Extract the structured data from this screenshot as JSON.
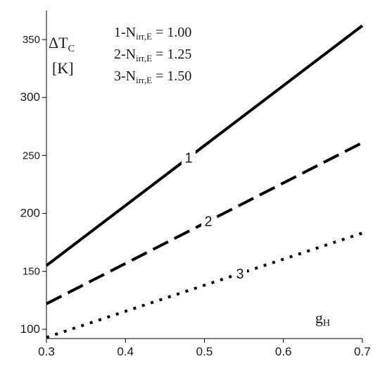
{
  "chart_data": {
    "type": "line",
    "xlabel": {
      "main": "g",
      "sub": "H"
    },
    "ylabel": {
      "line1_main": "ΔT",
      "line1_sub": "C",
      "line2": "[K]"
    },
    "xlim": [
      0.3,
      0.7
    ],
    "ylim": [
      92,
      375
    ],
    "x_ticks": [
      "0.3",
      "0.4",
      "0.5",
      "0.6",
      "0.7"
    ],
    "y_ticks": [
      "100",
      "150",
      "200",
      "250",
      "300",
      "350"
    ],
    "grid": false,
    "legend": [
      {
        "prefix": "1-N",
        "sub": "irr,E",
        "value": " = 1.00"
      },
      {
        "prefix": "2-N",
        "sub": "irr,E",
        "value": " = 1.25"
      },
      {
        "prefix": "3-N",
        "sub": "irr,E",
        "value": " = 1.50"
      }
    ],
    "series": [
      {
        "label": "1",
        "style": "solid",
        "x": [
          0.3,
          0.7
        ],
        "y": [
          155,
          362
        ]
      },
      {
        "label": "2",
        "style": "dashed",
        "x": [
          0.3,
          0.7
        ],
        "y": [
          122,
          261
        ]
      },
      {
        "label": "3",
        "style": "dotted",
        "x": [
          0.3,
          0.7
        ],
        "y": [
          93,
          183
        ]
      }
    ],
    "colors": {
      "line": "#000000"
    }
  }
}
